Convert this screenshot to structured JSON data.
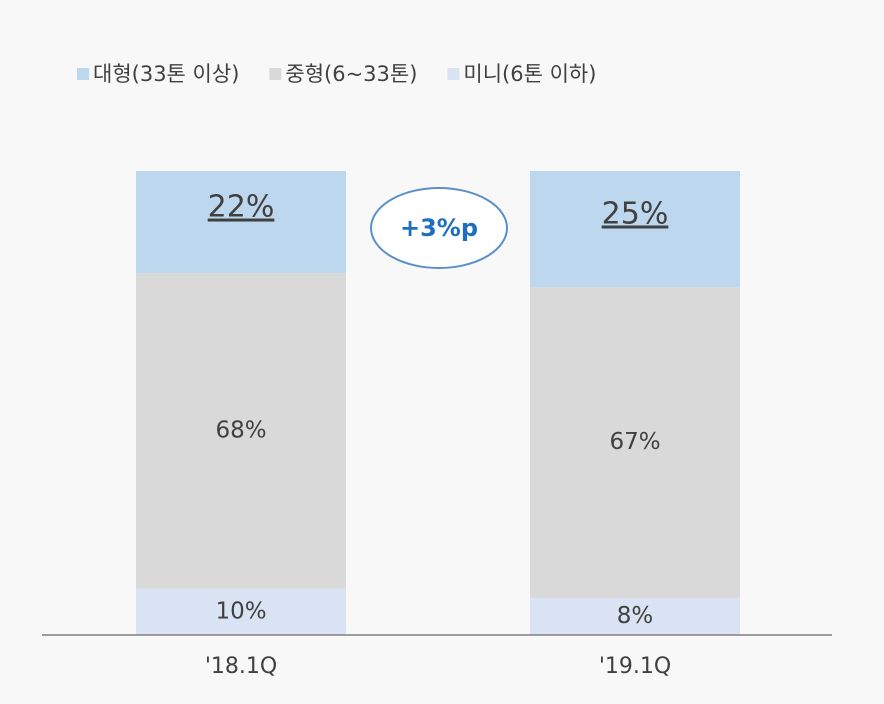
{
  "chart_data": {
    "type": "stacked_bar",
    "categories": [
      "'18.1Q",
      "'19.1Q"
    ],
    "series": [
      {
        "name": "대형(33톤 이상)",
        "color": "#bdd7ee",
        "values": [
          22,
          25
        ],
        "value_labels": [
          "22%",
          "25%"
        ]
      },
      {
        "name": "중형(6~33톤)",
        "color": "#d9d9d9",
        "values": [
          68,
          67
        ],
        "value_labels": [
          "68%",
          "67%"
        ]
      },
      {
        "name": "미니(6톤 이하)",
        "color": "#dae3f3",
        "values": [
          10,
          8
        ],
        "value_labels": [
          "10%",
          "8%"
        ]
      }
    ],
    "ylim": [
      0,
      100
    ],
    "annotation": "+3%p"
  }
}
